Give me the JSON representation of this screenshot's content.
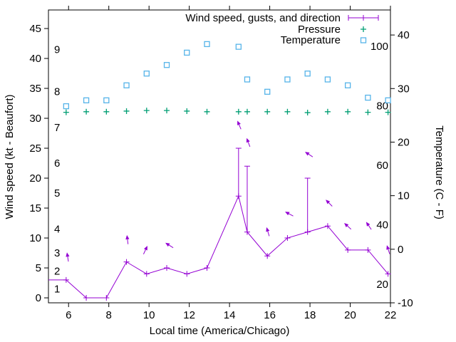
{
  "chart_data": {
    "type": "line",
    "legend": {
      "position": "top-right-inside",
      "entries": [
        {
          "label": "Wind speed, gusts, and direction",
          "marker": "errorbar-line-plus",
          "color": "#9400d3"
        },
        {
          "label": "Pressure",
          "marker": "plus",
          "color": "#009e73"
        },
        {
          "label": "Temperature",
          "marker": "open-square",
          "color": "#56b4e9"
        }
      ]
    },
    "x": {
      "label": "Local time (America/Chicago)",
      "min": 5,
      "max": 22,
      "ticks": [
        6,
        8,
        10,
        12,
        14,
        16,
        18,
        20,
        22
      ]
    },
    "y_left": {
      "label": "Wind speed (kt - Beaufort)",
      "min": -0.83,
      "max": 48.1,
      "ticks": [
        0,
        5,
        10,
        15,
        20,
        25,
        30,
        35,
        40,
        45
      ],
      "beaufort_inner_labels": [
        {
          "label": "1",
          "kt": 1
        },
        {
          "label": "2",
          "kt": 4
        },
        {
          "label": "3",
          "kt": 7
        },
        {
          "label": "4",
          "kt": 11
        },
        {
          "label": "5",
          "kt": 17
        },
        {
          "label": "6",
          "kt": 22
        },
        {
          "label": "7",
          "kt": 28
        },
        {
          "label": "8",
          "kt": 34
        },
        {
          "label": "9",
          "kt": 41
        }
      ]
    },
    "y_right": {
      "label": "Temperature (C - F)",
      "min": -10,
      "max": 44.67,
      "ticks": [
        -10,
        0,
        10,
        20,
        30,
        40
      ],
      "fahrenheit_inner_labels": [
        {
          "label": "20",
          "c": -6.67
        },
        {
          "label": "40",
          "c": 4.44
        },
        {
          "label": "60",
          "c": 15.56
        },
        {
          "label": "80",
          "c": 26.67
        },
        {
          "label": "100",
          "c": 37.78
        }
      ]
    },
    "series": {
      "wind": {
        "name": "Wind speed, gusts, and direction",
        "color": "#9400d3",
        "units": "kt",
        "line_start": {
          "t": 5.0,
          "kt": 3
        },
        "points": [
          {
            "t": 5.88,
            "kt": 3
          },
          {
            "t": 6.88,
            "kt": 0
          },
          {
            "t": 7.88,
            "kt": 0
          },
          {
            "t": 8.88,
            "kt": 6
          },
          {
            "t": 9.88,
            "kt": 4
          },
          {
            "t": 10.88,
            "kt": 5
          },
          {
            "t": 11.88,
            "kt": 4
          },
          {
            "t": 12.88,
            "kt": 5
          },
          {
            "t": 14.45,
            "kt": 17,
            "gust": 25
          },
          {
            "t": 14.88,
            "kt": 11,
            "gust": 22
          },
          {
            "t": 15.88,
            "kt": 7
          },
          {
            "t": 16.88,
            "kt": 10
          },
          {
            "t": 17.88,
            "kt": 11,
            "gust": 20
          },
          {
            "t": 18.88,
            "kt": 12
          },
          {
            "t": 19.88,
            "kt": 8
          },
          {
            "t": 20.88,
            "kt": 8
          },
          {
            "t": 21.88,
            "kt": 4
          }
        ],
        "direction_arrows": [
          {
            "t": 5.92,
            "kt": 7.6,
            "angle_deg": 99
          },
          {
            "t": 8.9,
            "kt": 10.5,
            "angle_deg": 97
          },
          {
            "t": 9.92,
            "kt": 8.7,
            "angle_deg": 65
          },
          {
            "t": 10.81,
            "kt": 9.2,
            "angle_deg": 148
          },
          {
            "t": 14.39,
            "kt": 29.6,
            "angle_deg": 113
          },
          {
            "t": 14.85,
            "kt": 26.7,
            "angle_deg": 111
          },
          {
            "t": 15.84,
            "kt": 11.8,
            "angle_deg": 107
          },
          {
            "t": 16.76,
            "kt": 14.4,
            "angle_deg": 152
          },
          {
            "t": 17.75,
            "kt": 24.4,
            "angle_deg": 147
          },
          {
            "t": 18.78,
            "kt": 16.4,
            "angle_deg": 135
          },
          {
            "t": 19.7,
            "kt": 12.5,
            "angle_deg": 138
          },
          {
            "t": 20.79,
            "kt": 12.7,
            "angle_deg": 124
          },
          {
            "t": 21.82,
            "kt": 8.8,
            "angle_deg": 108
          }
        ]
      },
      "pressure": {
        "name": "Pressure",
        "color": "#009e73",
        "note": "no pressure axis drawn; y values are plotted heights in left-axis (kt) units",
        "points": [
          {
            "t": 5.88,
            "y": 31.0
          },
          {
            "t": 6.88,
            "y": 31.1
          },
          {
            "t": 7.88,
            "y": 31.1
          },
          {
            "t": 8.88,
            "y": 31.2
          },
          {
            "t": 9.88,
            "y": 31.3
          },
          {
            "t": 10.88,
            "y": 31.3
          },
          {
            "t": 11.88,
            "y": 31.2
          },
          {
            "t": 12.88,
            "y": 31.1
          },
          {
            "t": 14.45,
            "y": 31.1
          },
          {
            "t": 14.88,
            "y": 31.1
          },
          {
            "t": 15.88,
            "y": 31.1
          },
          {
            "t": 16.88,
            "y": 31.1
          },
          {
            "t": 17.88,
            "y": 30.95
          },
          {
            "t": 18.88,
            "y": 31.1
          },
          {
            "t": 19.88,
            "y": 31.1
          },
          {
            "t": 20.88,
            "y": 31.0
          },
          {
            "t": 21.88,
            "y": 31.0
          }
        ]
      },
      "temperature": {
        "name": "Temperature",
        "color": "#56b4e9",
        "units": "C",
        "points": [
          {
            "t": 5.88,
            "c": 26.7
          },
          {
            "t": 6.88,
            "c": 27.8
          },
          {
            "t": 7.88,
            "c": 27.8
          },
          {
            "t": 8.88,
            "c": 30.6
          },
          {
            "t": 9.88,
            "c": 32.8
          },
          {
            "t": 10.88,
            "c": 34.4
          },
          {
            "t": 11.88,
            "c": 36.7
          },
          {
            "t": 12.88,
            "c": 38.3
          },
          {
            "t": 14.45,
            "c": 37.8
          },
          {
            "t": 14.88,
            "c": 31.7
          },
          {
            "t": 15.88,
            "c": 29.4
          },
          {
            "t": 16.88,
            "c": 31.7
          },
          {
            "t": 17.88,
            "c": 32.8
          },
          {
            "t": 18.88,
            "c": 31.7
          },
          {
            "t": 19.88,
            "c": 30.6
          },
          {
            "t": 20.88,
            "c": 28.3
          },
          {
            "t": 21.88,
            "c": 27.8
          }
        ]
      }
    },
    "grid": false,
    "background": "#ffffff",
    "border_color": "#000000"
  }
}
